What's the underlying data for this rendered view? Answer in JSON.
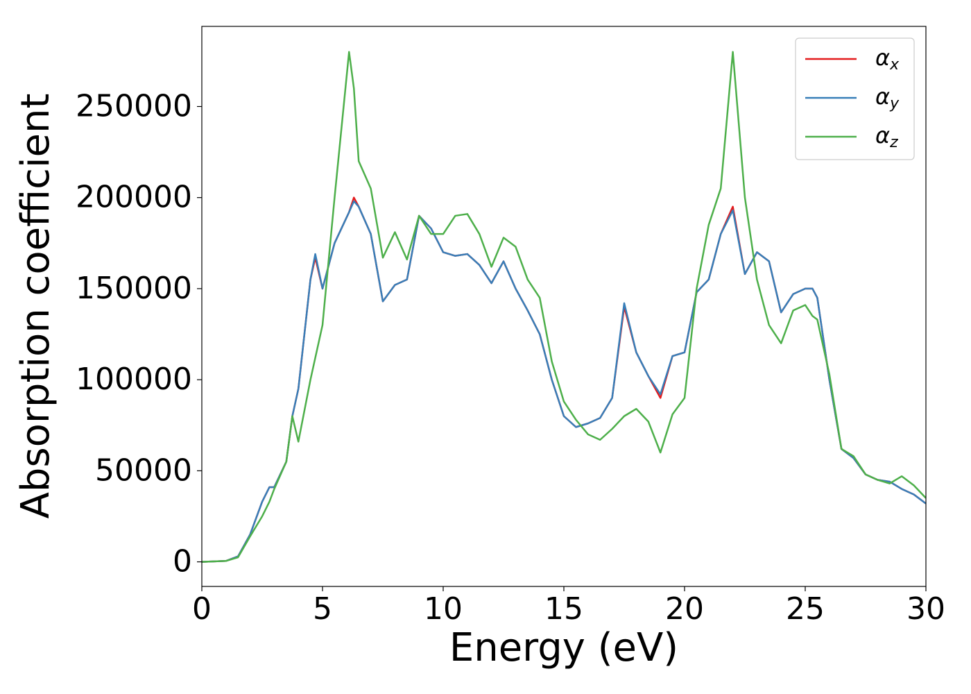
{
  "chart_data": {
    "type": "line",
    "xlabel": "Energy (eV)",
    "ylabel": "Absorption coefficient",
    "x": [
      0,
      1,
      1.5,
      2,
      2.5,
      2.8,
      3,
      3.5,
      3.75,
      4,
      4.5,
      4.7,
      5,
      5.5,
      6.1,
      6.3,
      6.5,
      7,
      7.5,
      8,
      8.5,
      9,
      9.5,
      10,
      10.5,
      11,
      11.5,
      12,
      12.5,
      13,
      13.5,
      14,
      14.5,
      15,
      15.5,
      16,
      16.5,
      17,
      17.5,
      18,
      18.5,
      19,
      19.5,
      20,
      20.5,
      21,
      21.5,
      22,
      22.5,
      23,
      23.5,
      24,
      24.5,
      25,
      25.3,
      25.5,
      26,
      26.5,
      27,
      27.5,
      28,
      28.5,
      29,
      29.5,
      30
    ],
    "series": [
      {
        "name": "αx",
        "color": "#e41a1c",
        "values": [
          0,
          500,
          3000,
          15000,
          33000,
          41000,
          41000,
          55000,
          80000,
          95000,
          155000,
          167000,
          150000,
          175000,
          192000,
          200000,
          195000,
          180000,
          143000,
          152000,
          155000,
          190000,
          183000,
          170000,
          168000,
          169000,
          163000,
          153000,
          165000,
          150000,
          138000,
          125000,
          100000,
          80000,
          74000,
          76000,
          79000,
          90000,
          140000,
          115000,
          102000,
          90000,
          113000,
          115000,
          148000,
          155000,
          180000,
          195000,
          158000,
          170000,
          165000,
          137000,
          147000,
          150000,
          150000,
          145000,
          100000,
          62000,
          57000,
          48000,
          45000,
          44000,
          40000,
          37000,
          32000
        ]
      },
      {
        "name": "αy",
        "color": "#377eb8",
        "values": [
          0,
          500,
          3000,
          15000,
          33000,
          41000,
          41000,
          55000,
          80000,
          95000,
          155000,
          169000,
          150000,
          175000,
          192000,
          198000,
          195000,
          180000,
          143000,
          152000,
          155000,
          190000,
          183000,
          170000,
          168000,
          169000,
          163000,
          153000,
          165000,
          150000,
          138000,
          125000,
          100000,
          80000,
          74000,
          76000,
          79000,
          90000,
          142000,
          115000,
          102000,
          92000,
          113000,
          115000,
          148000,
          155000,
          180000,
          193000,
          158000,
          170000,
          165000,
          137000,
          147000,
          150000,
          150000,
          145000,
          100000,
          62000,
          57000,
          48000,
          45000,
          44000,
          40000,
          37000,
          32000
        ]
      },
      {
        "name": "αz",
        "color": "#4daf4a",
        "values": [
          0,
          500,
          2500,
          14000,
          25000,
          33000,
          40000,
          55000,
          80000,
          66000,
          100000,
          112000,
          130000,
          200000,
          280000,
          260000,
          220000,
          205000,
          167000,
          181000,
          166000,
          190000,
          180000,
          180000,
          190000,
          191000,
          180000,
          162000,
          178000,
          173000,
          155000,
          145000,
          110000,
          88000,
          78000,
          70000,
          67000,
          73000,
          80000,
          84000,
          77000,
          60000,
          81000,
          90000,
          150000,
          185000,
          205000,
          280000,
          200000,
          155000,
          130000,
          120000,
          138000,
          141000,
          135000,
          133000,
          103000,
          62000,
          58000,
          48000,
          45000,
          43000,
          47000,
          42000,
          35000
        ]
      }
    ],
    "xlim": [
      0,
      30
    ],
    "xticks": [
      0,
      5,
      10,
      15,
      20,
      25,
      30
    ],
    "ylim": [
      -13500,
      294000
    ],
    "yticks": [
      0,
      50000,
      100000,
      150000,
      200000,
      250000
    ],
    "legend": "upper right",
    "grid": false
  }
}
